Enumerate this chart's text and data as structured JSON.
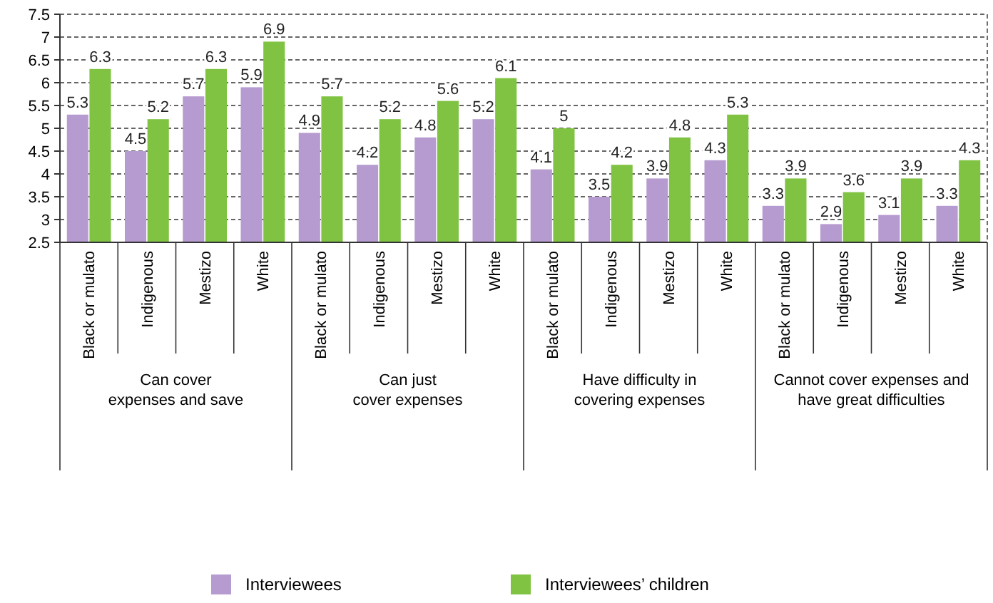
{
  "chart_data": {
    "type": "bar",
    "categories": [
      "Black or mulato",
      "Indigenous",
      "Mestizo",
      "White",
      "Black or mulato",
      "Indigenous",
      "Mestizo",
      "White",
      "Black or mulato",
      "Indigenous",
      "Mestizo",
      "White",
      "Black or mulato",
      "Indigenous",
      "Mestizo",
      "White"
    ],
    "series": [
      {
        "name": "Interviewees",
        "color": "#b69bd0",
        "values": [
          5.3,
          4.5,
          5.7,
          5.9,
          4.9,
          4.2,
          4.8,
          5.2,
          4.1,
          3.5,
          3.9,
          4.3,
          3.3,
          2.9,
          3.1,
          3.3
        ]
      },
      {
        "name": "Interviewees’ children",
        "color": "#80c342",
        "values": [
          6.3,
          5.2,
          6.3,
          6.9,
          5.7,
          5.2,
          5.6,
          6.1,
          5,
          4.2,
          4.8,
          5.3,
          3.9,
          3.6,
          3.9,
          4.3
        ]
      }
    ],
    "ylim": [
      2.5,
      7.5
    ],
    "yticks": [
      2.5,
      3,
      3.5,
      4,
      4.5,
      5,
      5.5,
      6,
      6.5,
      7,
      7.5
    ],
    "grid": "y",
    "data_labels": true,
    "legend": "bottom",
    "annotations": [
      "Can cover expenses and save",
      "Can just cover expenses",
      "Have difficulty in covering expenses",
      "Cannot cover expenses and have great difficulties"
    ]
  }
}
